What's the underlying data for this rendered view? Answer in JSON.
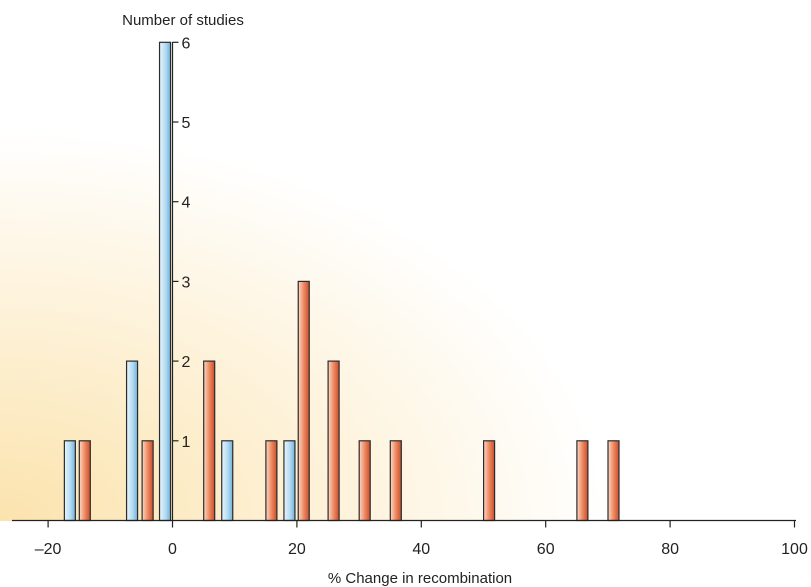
{
  "chart_data": {
    "type": "bar",
    "xlabel": "% Change in recombination",
    "ylabel": "Number of studies",
    "xlim": [
      -25,
      100
    ],
    "ylim": [
      0,
      6
    ],
    "x_ticks": [
      "–20",
      "0",
      "20",
      "40",
      "60",
      "80",
      "100"
    ],
    "x_tick_values": [
      -20,
      0,
      20,
      40,
      60,
      80,
      100
    ],
    "y_ticks": [
      "1",
      "2",
      "3",
      "4",
      "5",
      "6"
    ],
    "y_tick_values": [
      1,
      2,
      3,
      4,
      5,
      6
    ],
    "grid": false,
    "series": [
      {
        "color": "#a9d3ec",
        "points": [
          {
            "x": -16.5,
            "y": 1
          },
          {
            "x": -6.5,
            "y": 2
          },
          {
            "x": -1.2,
            "y": 6
          },
          {
            "x": 8.8,
            "y": 1
          },
          {
            "x": 18.8,
            "y": 1
          }
        ]
      },
      {
        "color": "#e8764f",
        "points": [
          {
            "x": -14.1,
            "y": 1
          },
          {
            "x": -4.0,
            "y": 1
          },
          {
            "x": 5.9,
            "y": 2
          },
          {
            "x": 15.9,
            "y": 1
          },
          {
            "x": 21.1,
            "y": 3
          },
          {
            "x": 25.9,
            "y": 2
          },
          {
            "x": 30.9,
            "y": 1
          },
          {
            "x": 35.9,
            "y": 1
          },
          {
            "x": 50.9,
            "y": 1
          },
          {
            "x": 65.9,
            "y": 1
          },
          {
            "x": 70.9,
            "y": 1
          }
        ]
      }
    ]
  },
  "colors": {
    "background_glow": "#fbe3ad",
    "axis": "#222222",
    "bar_outline": "#2b2b2b"
  }
}
